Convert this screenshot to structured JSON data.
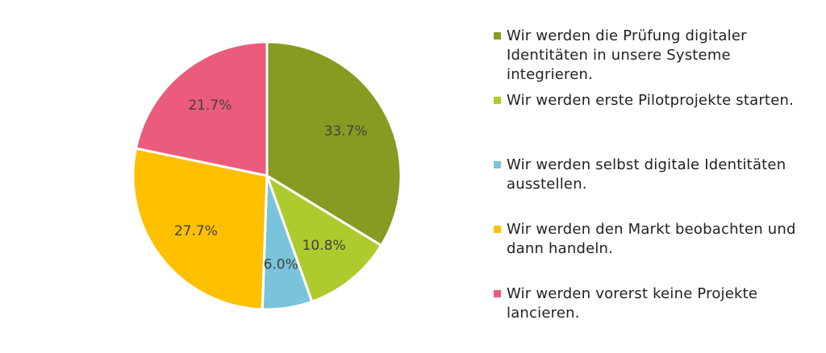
{
  "chart_data": {
    "type": "pie",
    "title": "",
    "categories": [
      "Wir werden die Prüfung digitaler Identitäten in unsere Systeme integrieren.",
      "Wir werden erste Pilotprojekte starten.",
      "Wir werden selbst digitale Identitäten ausstellen.",
      "Wir werden den Markt beobachten und dann handeln.",
      "Wir werden vorerst keine Projekte lancieren."
    ],
    "values": [
      33.7,
      10.8,
      6.0,
      27.7,
      21.7
    ],
    "value_labels": [
      "33.7%",
      "10.8%",
      "6.0%",
      "27.7%",
      "21.7%"
    ],
    "colors": [
      "#879a21",
      "#adcb2d",
      "#79c4da",
      "#ffc000",
      "#eb5b7b"
    ],
    "start_angle": "12 o'clock",
    "direction": "clockwise",
    "legend_position": "right"
  }
}
